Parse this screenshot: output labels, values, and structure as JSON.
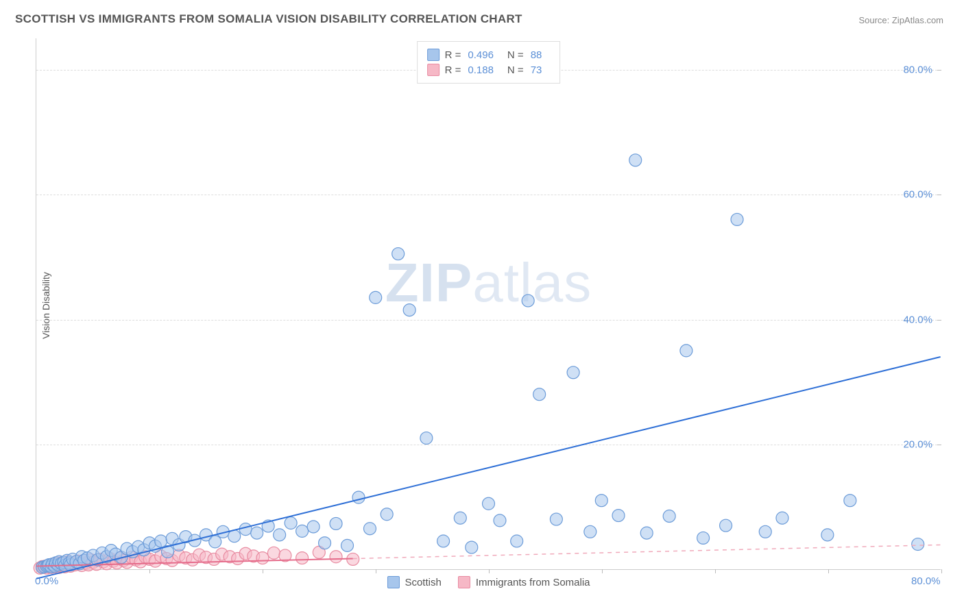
{
  "title": "SCOTTISH VS IMMIGRANTS FROM SOMALIA VISION DISABILITY CORRELATION CHART",
  "source": "Source: ZipAtlas.com",
  "y_axis_label": "Vision Disability",
  "watermark_bold": "ZIP",
  "watermark_light": "atlas",
  "chart": {
    "type": "scatter",
    "xlim": [
      0,
      80
    ],
    "ylim": [
      0,
      85
    ],
    "x_ticks": [
      0,
      10,
      20,
      30,
      40,
      50,
      60,
      70,
      80
    ],
    "y_ticks": [
      20,
      40,
      60,
      80
    ],
    "x_tick_labels": {
      "0": "0.0%",
      "80": "80.0%"
    },
    "y_tick_labels": {
      "20": "20.0%",
      "40": "40.0%",
      "60": "60.0%",
      "80": "80.0%"
    },
    "grid_color": "#dddddd",
    "background_color": "#ffffff",
    "marker_radius": 9,
    "marker_opacity": 0.55,
    "marker_stroke_width": 1.2
  },
  "series": [
    {
      "name": "Scottish",
      "color_fill": "#a7c6ec",
      "color_stroke": "#6b9bd8",
      "r_label": "R =",
      "r_value": "0.496",
      "n_label": "N =",
      "n_value": "88",
      "trend": {
        "x1": 0,
        "y1": -1.5,
        "x2": 80,
        "y2": 34,
        "color": "#2e6fd6",
        "width": 2,
        "dash": "none"
      },
      "points": [
        [
          0.5,
          0.3
        ],
        [
          0.7,
          0.4
        ],
        [
          0.9,
          0.5
        ],
        [
          1.0,
          0.6
        ],
        [
          1.1,
          0.7
        ],
        [
          1.3,
          0.4
        ],
        [
          1.4,
          0.8
        ],
        [
          1.6,
          0.5
        ],
        [
          1.7,
          1.0
        ],
        [
          1.9,
          0.7
        ],
        [
          2.0,
          1.2
        ],
        [
          2.2,
          0.9
        ],
        [
          2.4,
          1.1
        ],
        [
          2.5,
          0.6
        ],
        [
          2.7,
          1.4
        ],
        [
          2.9,
          1.0
        ],
        [
          3.0,
          0.7
        ],
        [
          3.2,
          1.6
        ],
        [
          3.5,
          1.2
        ],
        [
          3.8,
          0.9
        ],
        [
          4.0,
          2.0
        ],
        [
          4.2,
          1.4
        ],
        [
          4.5,
          1.8
        ],
        [
          5.0,
          2.2
        ],
        [
          5.4,
          1.5
        ],
        [
          5.8,
          2.6
        ],
        [
          6.2,
          2.0
        ],
        [
          6.6,
          3.0
        ],
        [
          7.0,
          2.4
        ],
        [
          7.5,
          1.9
        ],
        [
          8.0,
          3.3
        ],
        [
          8.5,
          2.8
        ],
        [
          9.0,
          3.6
        ],
        [
          9.5,
          3.1
        ],
        [
          10.0,
          4.2
        ],
        [
          10.5,
          3.7
        ],
        [
          11.0,
          4.5
        ],
        [
          11.6,
          2.8
        ],
        [
          12.0,
          4.9
        ],
        [
          12.6,
          3.9
        ],
        [
          13.2,
          5.2
        ],
        [
          14.0,
          4.6
        ],
        [
          15.0,
          5.5
        ],
        [
          15.8,
          4.4
        ],
        [
          16.5,
          6.0
        ],
        [
          17.5,
          5.3
        ],
        [
          18.5,
          6.4
        ],
        [
          19.5,
          5.8
        ],
        [
          20.5,
          6.9
        ],
        [
          21.5,
          5.5
        ],
        [
          22.5,
          7.4
        ],
        [
          23.5,
          6.1
        ],
        [
          24.5,
          6.8
        ],
        [
          25.5,
          4.2
        ],
        [
          26.5,
          7.3
        ],
        [
          27.5,
          3.8
        ],
        [
          28.5,
          11.5
        ],
        [
          29.5,
          6.5
        ],
        [
          30.0,
          43.5
        ],
        [
          31.0,
          8.8
        ],
        [
          32.0,
          50.5
        ],
        [
          33.0,
          41.5
        ],
        [
          34.5,
          21.0
        ],
        [
          36.0,
          4.5
        ],
        [
          37.5,
          8.2
        ],
        [
          38.5,
          3.5
        ],
        [
          40.0,
          10.5
        ],
        [
          41.0,
          7.8
        ],
        [
          42.5,
          4.5
        ],
        [
          43.5,
          43.0
        ],
        [
          44.5,
          28.0
        ],
        [
          46.0,
          8.0
        ],
        [
          47.5,
          31.5
        ],
        [
          49.0,
          6.0
        ],
        [
          50.0,
          11.0
        ],
        [
          51.5,
          8.6
        ],
        [
          53.0,
          65.5
        ],
        [
          54.0,
          5.8
        ],
        [
          56.0,
          8.5
        ],
        [
          57.5,
          35.0
        ],
        [
          59.0,
          5.0
        ],
        [
          61.0,
          7.0
        ],
        [
          62.0,
          56.0
        ],
        [
          64.5,
          6.0
        ],
        [
          66.0,
          8.2
        ],
        [
          70.0,
          5.5
        ],
        [
          72.0,
          11.0
        ],
        [
          78.0,
          4.0
        ]
      ]
    },
    {
      "name": "Immigrants from Somalia",
      "color_fill": "#f6b8c6",
      "color_stroke": "#e88aa0",
      "r_label": "R =",
      "r_value": "0.188",
      "n_label": "N =",
      "n_value": "73",
      "trend_solid": {
        "x1": 0,
        "y1": 0.5,
        "x2": 28,
        "y2": 1.7,
        "color": "#e56b8a",
        "width": 2
      },
      "trend_dash": {
        "x1": 28,
        "y1": 1.7,
        "x2": 80,
        "y2": 3.9,
        "color": "#f0a9ba",
        "width": 1.5,
        "dash": "6,6"
      },
      "points": [
        [
          0.3,
          0.2
        ],
        [
          0.5,
          0.4
        ],
        [
          0.6,
          0.3
        ],
        [
          0.8,
          0.5
        ],
        [
          0.9,
          0.2
        ],
        [
          1.0,
          0.6
        ],
        [
          1.1,
          0.4
        ],
        [
          1.2,
          0.7
        ],
        [
          1.3,
          0.3
        ],
        [
          1.4,
          0.8
        ],
        [
          1.5,
          0.5
        ],
        [
          1.6,
          0.9
        ],
        [
          1.7,
          0.4
        ],
        [
          1.8,
          1.0
        ],
        [
          1.9,
          0.6
        ],
        [
          2.0,
          0.3
        ],
        [
          2.1,
          0.8
        ],
        [
          2.2,
          0.5
        ],
        [
          2.3,
          1.1
        ],
        [
          2.4,
          0.7
        ],
        [
          2.5,
          0.4
        ],
        [
          2.6,
          0.9
        ],
        [
          2.7,
          0.6
        ],
        [
          2.8,
          1.2
        ],
        [
          2.9,
          0.8
        ],
        [
          3.0,
          0.5
        ],
        [
          3.2,
          1.0
        ],
        [
          3.4,
          0.7
        ],
        [
          3.6,
          1.3
        ],
        [
          3.8,
          0.9
        ],
        [
          4.0,
          0.6
        ],
        [
          4.2,
          1.4
        ],
        [
          4.4,
          1.0
        ],
        [
          4.6,
          0.7
        ],
        [
          4.8,
          1.5
        ],
        [
          5.0,
          1.1
        ],
        [
          5.3,
          0.8
        ],
        [
          5.6,
          1.6
        ],
        [
          5.9,
          1.2
        ],
        [
          6.2,
          0.9
        ],
        [
          6.5,
          1.7
        ],
        [
          6.8,
          1.3
        ],
        [
          7.1,
          1.0
        ],
        [
          7.4,
          1.8
        ],
        [
          7.7,
          1.4
        ],
        [
          8.0,
          1.1
        ],
        [
          8.4,
          1.9
        ],
        [
          8.8,
          1.5
        ],
        [
          9.2,
          1.2
        ],
        [
          9.6,
          2.0
        ],
        [
          10.0,
          1.6
        ],
        [
          10.5,
          1.3
        ],
        [
          11.0,
          2.1
        ],
        [
          11.5,
          1.7
        ],
        [
          12.0,
          1.4
        ],
        [
          12.6,
          2.2
        ],
        [
          13.2,
          1.8
        ],
        [
          13.8,
          1.5
        ],
        [
          14.4,
          2.3
        ],
        [
          15.0,
          1.9
        ],
        [
          15.7,
          1.6
        ],
        [
          16.4,
          2.4
        ],
        [
          17.1,
          2.0
        ],
        [
          17.8,
          1.7
        ],
        [
          18.5,
          2.5
        ],
        [
          19.2,
          2.1
        ],
        [
          20.0,
          1.8
        ],
        [
          21.0,
          2.6
        ],
        [
          22.0,
          2.2
        ],
        [
          23.5,
          1.8
        ],
        [
          25.0,
          2.7
        ],
        [
          26.5,
          2.0
        ],
        [
          28.0,
          1.6
        ]
      ]
    }
  ],
  "legend_top_labels": {
    "r": "R =",
    "n": "N ="
  },
  "legend_bottom": [
    {
      "swatch_fill": "#a7c6ec",
      "swatch_stroke": "#6b9bd8",
      "label": "Scottish"
    },
    {
      "swatch_fill": "#f6b8c6",
      "swatch_stroke": "#e88aa0",
      "label": "Immigrants from Somalia"
    }
  ]
}
